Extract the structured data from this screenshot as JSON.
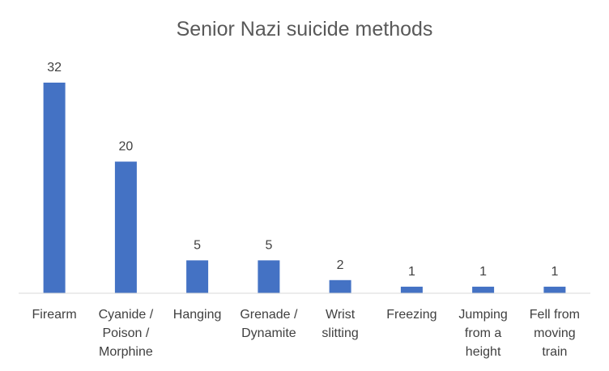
{
  "chart_data": {
    "type": "bar",
    "title": "Senior Nazi suicide methods",
    "xlabel": "",
    "ylabel": "",
    "categories": [
      [
        "Firearm"
      ],
      [
        "Cyanide /",
        "Poison /",
        "Morphine"
      ],
      [
        "Hanging"
      ],
      [
        "Grenade /",
        "Dynamite"
      ],
      [
        "Wrist",
        "slitting"
      ],
      [
        "Freezing"
      ],
      [
        "Jumping",
        "from a",
        "height"
      ],
      [
        "Fell from",
        "moving",
        "train"
      ]
    ],
    "values": [
      32,
      20,
      5,
      5,
      2,
      1,
      1,
      1
    ],
    "data_labels": [
      "32",
      "20",
      "5",
      "5",
      "2",
      "1",
      "1",
      "1"
    ],
    "ylim": [
      0,
      32
    ],
    "grid": false,
    "legend": "none",
    "bar_color": "#4472C4",
    "axis_color": "#D9D9D9"
  }
}
